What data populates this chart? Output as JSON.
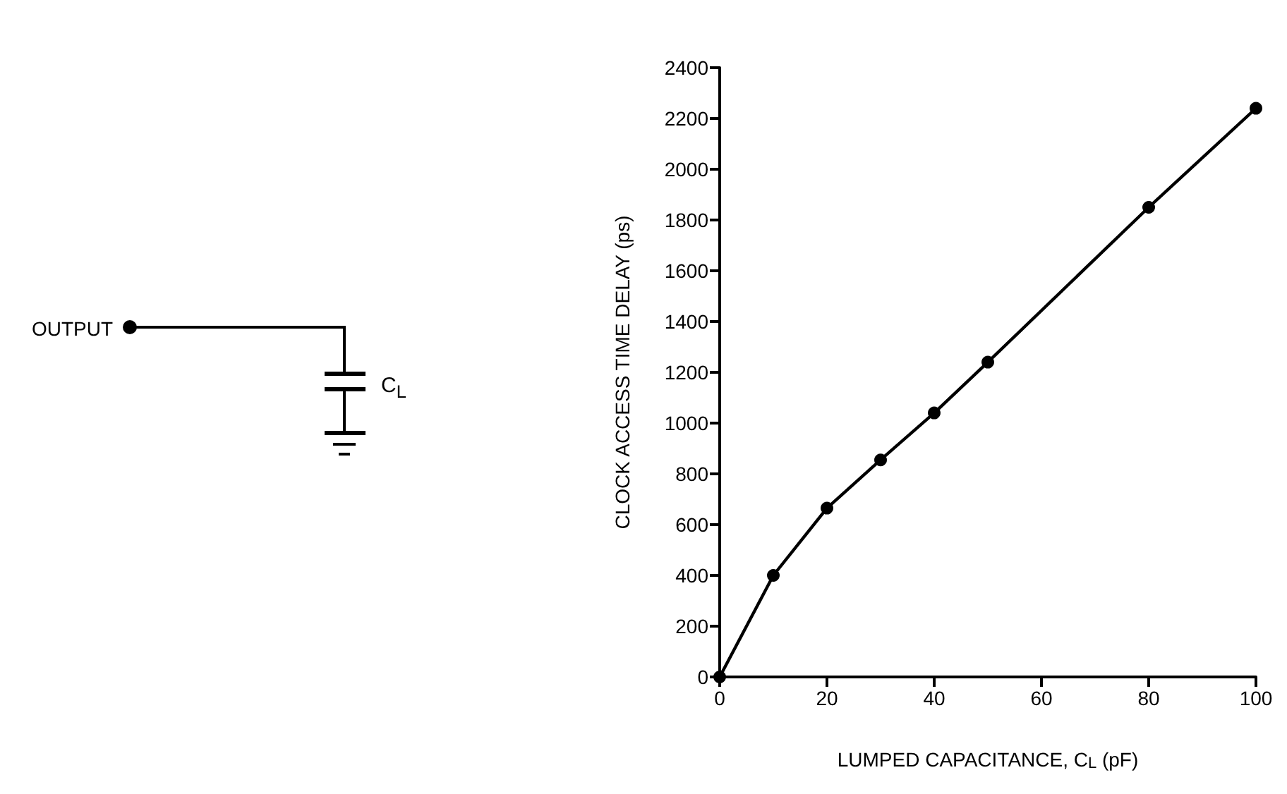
{
  "chart_data": {
    "type": "line",
    "xlabel": "LUMPED CAPACITANCE, C$_{L}$ (pF)",
    "ylabel": "CLOCK ACCESS TIME DELAY (ps)",
    "x": [
      0,
      10,
      20,
      30,
      40,
      50,
      80,
      100
    ],
    "series": [
      {
        "color": "#000000",
        "values": [
          0,
          400,
          665,
          855,
          1040,
          1240,
          1850,
          2240
        ]
      }
    ],
    "xlim": [
      0,
      100
    ],
    "xticks": [
      0,
      20,
      40,
      60,
      80,
      100
    ],
    "ylim": [
      0,
      2400
    ],
    "yticks": [
      0,
      200,
      400,
      600,
      800,
      1000,
      1200,
      1400,
      1600,
      1800,
      2000,
      2200,
      2400
    ],
    "grid": false,
    "marker": "circle",
    "line_style": "solid",
    "annotations": [
      "OUTPUT",
      "C$_{L}$"
    ]
  }
}
